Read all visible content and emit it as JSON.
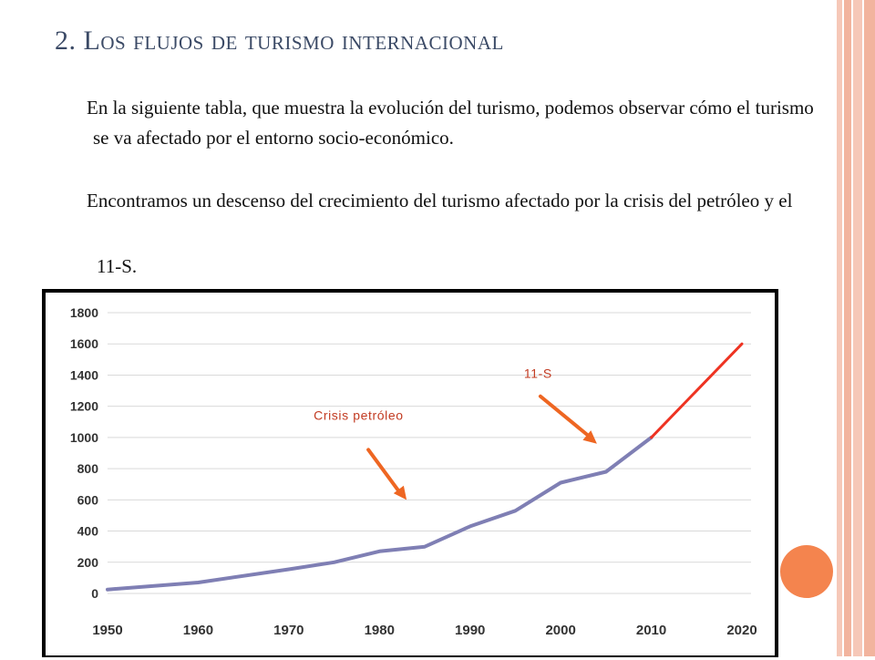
{
  "slide": {
    "title": "2. Los flujos de turismo internacional",
    "paragraph_1": "En la siguiente tabla, que muestra la evolución del turismo, podemos observar cómo el turismo se va afectado por el entorno socio-económico.",
    "paragraph_2": "Encontramos un descenso del crecimiento del turismo afectado por la crisis del petróleo y el",
    "paragraph_3": "11-S."
  },
  "colors": {
    "historical_line": "#7f7fb4",
    "forecast_line": "#ee3322",
    "annotation_text": "#c23b22",
    "arrow": "#ee6622",
    "title": "#3b4a66"
  },
  "chart_data": {
    "type": "line",
    "x": [
      1950,
      1960,
      1970,
      1975,
      1980,
      1985,
      1990,
      1995,
      2000,
      2005,
      2010,
      2020
    ],
    "series": [
      {
        "values": [
          25,
          70,
          155,
          200,
          270,
          300,
          430,
          530,
          710,
          780,
          1000,
          null
        ]
      },
      {
        "values": [
          null,
          null,
          null,
          null,
          null,
          null,
          null,
          null,
          null,
          null,
          1000,
          1600
        ]
      }
    ],
    "x_ticks": [
      "1950",
      "1960",
      "1970",
      "1980",
      "1990",
      "2000",
      "2010",
      "2020"
    ],
    "y_ticks": [
      "0",
      "200",
      "400",
      "600",
      "800",
      "1000",
      "1200",
      "1400",
      "1600",
      "1800"
    ],
    "xlim": [
      1950,
      2020
    ],
    "ylim": [
      0,
      1800
    ],
    "grid": "horizontal",
    "legend": "none",
    "annotations": [
      {
        "text": "Crisis petróleo",
        "x": 1983,
        "y": 600
      },
      {
        "text": "11-S",
        "x": 2004,
        "y": 960
      }
    ],
    "title": "",
    "xlabel": "",
    "ylabel": ""
  }
}
